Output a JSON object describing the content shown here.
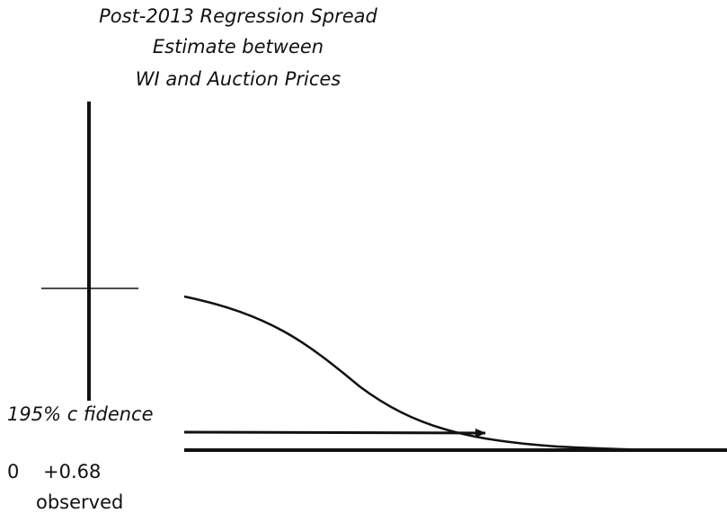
{
  "title": {
    "lines": [
      "Post-2013 Regression Spread",
      "Estimate between",
      "WI and Auction Prices"
    ]
  },
  "labels": {
    "confidence": "195% c fidence",
    "origin": "0",
    "offset": "+0.68",
    "observed": "observed"
  }
}
